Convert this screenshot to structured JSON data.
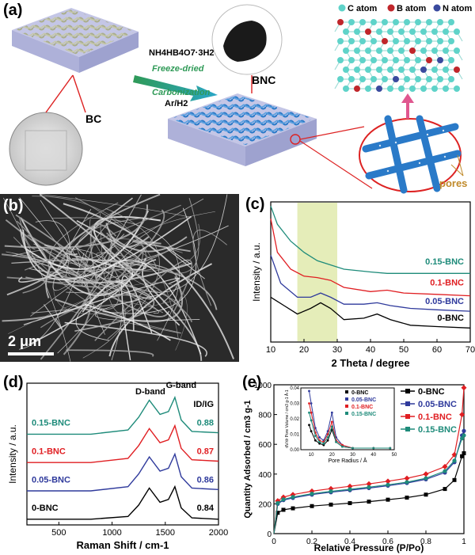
{
  "panel_a": {
    "label": "(a)",
    "bc_label": "BC",
    "bnc_label": "BNC",
    "reagent": "NH4HB4O7·3H2O",
    "step1": "Freeze-dried",
    "step2": "Carbonization",
    "gas": "Ar/H2",
    "pores_label": "pores",
    "legend": {
      "c": "C atom",
      "b": "B atom",
      "n": "N atom"
    },
    "colors": {
      "c": "#5fd3c9",
      "b": "#c0262b",
      "n": "#3a4a9e",
      "fiber": "#2a7ac8",
      "bcfiber": "#a9ad87"
    }
  },
  "panel_b": {
    "label": "(b)",
    "scale_bar": "2 μm"
  },
  "panel_c": {
    "label": "(c)",
    "xlabel": "2 Theta / degree",
    "ylabel": "Intensity / a.u.",
    "highlight": [
      18,
      30
    ]
  },
  "panel_d": {
    "label": "(d)",
    "xlabel": "Raman Shift / cm-1",
    "ylabel": "Intensity / a.u.",
    "d_band": "D-band",
    "g_band": "G-band",
    "ratio_header": "ID/IG"
  },
  "panel_e": {
    "label": "(e)",
    "xlabel": "Relative Pressure (P/Po)",
    "ylabel": "Quantity Adsorbed / cm3 g-1",
    "inset_xlabel": "Pore Radius / Å",
    "inset_ylabel": "dV/dr Pore Volume / cm3 g-1 Å-1"
  },
  "chart_data": [
    {
      "type": "line",
      "xlabel": "2 Theta / degree",
      "ylabel": "Intensity / a.u.",
      "xlim": [
        10,
        70
      ],
      "xticks": [
        10,
        20,
        30,
        40,
        50,
        60,
        70
      ],
      "series": [
        {
          "name": "0-BNC",
          "color": "#000000",
          "x": [
            10,
            14,
            18,
            22,
            25,
            28,
            32,
            38,
            42,
            46,
            52,
            60,
            70
          ],
          "y": [
            0.32,
            0.26,
            0.2,
            0.24,
            0.28,
            0.24,
            0.16,
            0.17,
            0.2,
            0.16,
            0.12,
            0.11,
            0.1
          ]
        },
        {
          "name": "0.05-BNC",
          "color": "#2f3a9c",
          "x": [
            10,
            13,
            18,
            22,
            25,
            28,
            32,
            38,
            42,
            46,
            52,
            60,
            70
          ],
          "y": [
            0.62,
            0.42,
            0.32,
            0.32,
            0.35,
            0.32,
            0.27,
            0.27,
            0.28,
            0.26,
            0.24,
            0.23,
            0.22
          ]
        },
        {
          "name": "0.1-BNC",
          "color": "#e01e22",
          "x": [
            10,
            12,
            16,
            20,
            24,
            28,
            32,
            40,
            45,
            50,
            60,
            70
          ],
          "y": [
            0.88,
            0.64,
            0.52,
            0.47,
            0.46,
            0.44,
            0.39,
            0.36,
            0.37,
            0.35,
            0.34,
            0.33
          ]
        },
        {
          "name": "0.15-BNC",
          "color": "#1e8b7a",
          "x": [
            10,
            12,
            16,
            20,
            24,
            28,
            32,
            40,
            45,
            50,
            60,
            70
          ],
          "y": [
            0.97,
            0.84,
            0.72,
            0.64,
            0.58,
            0.55,
            0.52,
            0.5,
            0.49,
            0.49,
            0.49,
            0.49
          ]
        }
      ]
    },
    {
      "type": "line",
      "xlabel": "Raman Shift / cm-1",
      "ylabel": "Intensity / a.u.",
      "xlim": [
        200,
        2000
      ],
      "xticks": [
        500,
        1000,
        1500,
        2000
      ],
      "series": [
        {
          "name": "0-BNC",
          "ratio": "0.84",
          "color": "#000000",
          "x": [
            200,
            800,
            1150,
            1250,
            1350,
            1450,
            1530,
            1590,
            1650,
            1750,
            2000
          ],
          "y": [
            0.04,
            0.04,
            0.06,
            0.14,
            0.26,
            0.16,
            0.18,
            0.27,
            0.12,
            0.05,
            0.04
          ]
        },
        {
          "name": "0.05-BNC",
          "ratio": "0.86",
          "color": "#2f3a9c",
          "x": [
            200,
            800,
            1150,
            1250,
            1350,
            1450,
            1530,
            1590,
            1650,
            1750,
            2000
          ],
          "y": [
            0.24,
            0.24,
            0.27,
            0.36,
            0.48,
            0.38,
            0.4,
            0.5,
            0.34,
            0.26,
            0.25
          ]
        },
        {
          "name": "0.1-BNC",
          "ratio": "0.87",
          "color": "#e01e22",
          "x": [
            200,
            800,
            1150,
            1250,
            1350,
            1450,
            1530,
            1590,
            1650,
            1750,
            2000
          ],
          "y": [
            0.44,
            0.44,
            0.47,
            0.56,
            0.68,
            0.58,
            0.6,
            0.7,
            0.54,
            0.46,
            0.45
          ]
        },
        {
          "name": "0.15-BNC",
          "ratio": "0.88",
          "color": "#1e8b7a",
          "x": [
            200,
            800,
            1150,
            1250,
            1350,
            1450,
            1530,
            1590,
            1650,
            1750,
            2000
          ],
          "y": [
            0.64,
            0.64,
            0.67,
            0.76,
            0.88,
            0.78,
            0.8,
            0.9,
            0.74,
            0.66,
            0.65
          ]
        }
      ]
    },
    {
      "type": "line",
      "xlabel": "Relative Pressure (P/Po)",
      "ylabel": "Quantity Adsorbed / cm3 g-1",
      "xlim": [
        0,
        1.0
      ],
      "ylim": [
        0,
        1000
      ],
      "xticks": [
        0.0,
        0.2,
        0.4,
        0.6,
        0.8,
        1.0
      ],
      "yticks": [
        0,
        200,
        400,
        600,
        800,
        1000
      ],
      "legend_position": "top-right",
      "series": [
        {
          "name": "0-BNC",
          "color": "#000000",
          "marker": "square",
          "x": [
            0,
            0.02,
            0.05,
            0.1,
            0.2,
            0.3,
            0.4,
            0.5,
            0.6,
            0.7,
            0.8,
            0.9,
            0.95,
            0.99,
            1.0
          ],
          "y": [
            0,
            140,
            160,
            170,
            185,
            195,
            205,
            215,
            228,
            242,
            262,
            300,
            360,
            520,
            540
          ]
        },
        {
          "name": "0.05-BNC",
          "color": "#2f3a9c",
          "marker": "circle",
          "x": [
            0,
            0.02,
            0.05,
            0.1,
            0.2,
            0.3,
            0.4,
            0.5,
            0.6,
            0.7,
            0.8,
            0.9,
            0.95,
            0.99,
            1.0
          ],
          "y": [
            0,
            200,
            225,
            240,
            262,
            278,
            292,
            306,
            322,
            340,
            365,
            410,
            480,
            660,
            690
          ]
        },
        {
          "name": "0.1-BNC",
          "color": "#e01e22",
          "marker": "diamond",
          "x": [
            0,
            0.02,
            0.05,
            0.1,
            0.2,
            0.3,
            0.4,
            0.5,
            0.6,
            0.7,
            0.8,
            0.9,
            0.95,
            0.99,
            1.0
          ],
          "y": [
            0,
            220,
            245,
            262,
            285,
            302,
            318,
            334,
            352,
            372,
            400,
            450,
            530,
            800,
            980
          ]
        },
        {
          "name": "0.15-BNC",
          "color": "#1e8b7a",
          "marker": "star",
          "x": [
            0,
            0.02,
            0.05,
            0.1,
            0.2,
            0.3,
            0.4,
            0.5,
            0.6,
            0.7,
            0.8,
            0.9,
            0.95,
            0.99,
            1.0
          ],
          "y": [
            0,
            205,
            230,
            246,
            268,
            284,
            298,
            312,
            328,
            346,
            372,
            420,
            490,
            640,
            660
          ]
        }
      ]
    },
    {
      "type": "line",
      "xlabel": "Pore Radius / Å",
      "ylabel": "dV/dr Pore Volume / cm3 g-1 Å-1",
      "xlim": [
        5,
        50
      ],
      "ylim": [
        0,
        0.04
      ],
      "xticks": [
        10,
        20,
        30,
        40,
        50
      ],
      "yticks": [
        0.0,
        0.01,
        0.02,
        0.03,
        0.04
      ],
      "series": [
        {
          "name": "0-BNC",
          "color": "#000000",
          "x": [
            9,
            10,
            12,
            14,
            16,
            18,
            20,
            22,
            25,
            30,
            40,
            48
          ],
          "y": [
            0.016,
            0.012,
            0.006,
            0.004,
            0.003,
            0.006,
            0.013,
            0.005,
            0.002,
            0.001,
            0.001,
            0.001
          ]
        },
        {
          "name": "0.05-BNC",
          "color": "#2f3a9c",
          "x": [
            9,
            10,
            12,
            14,
            16,
            18,
            20,
            22,
            25,
            30,
            40,
            48
          ],
          "y": [
            0.038,
            0.03,
            0.014,
            0.008,
            0.006,
            0.012,
            0.024,
            0.008,
            0.003,
            0.001,
            0.001,
            0.001
          ]
        },
        {
          "name": "0.1-BNC",
          "color": "#e01e22",
          "x": [
            9,
            10,
            12,
            14,
            16,
            18,
            20,
            22,
            25,
            30,
            40,
            48
          ],
          "y": [
            0.03,
            0.024,
            0.011,
            0.006,
            0.005,
            0.01,
            0.018,
            0.006,
            0.003,
            0.001,
            0.001,
            0.001
          ]
        },
        {
          "name": "0.15-BNC",
          "color": "#1e8b7a",
          "x": [
            9,
            10,
            12,
            14,
            16,
            18,
            20,
            22,
            25,
            30,
            40,
            48
          ],
          "y": [
            0.024,
            0.019,
            0.009,
            0.005,
            0.004,
            0.008,
            0.015,
            0.005,
            0.002,
            0.001,
            0.001,
            0.001
          ]
        }
      ]
    }
  ]
}
